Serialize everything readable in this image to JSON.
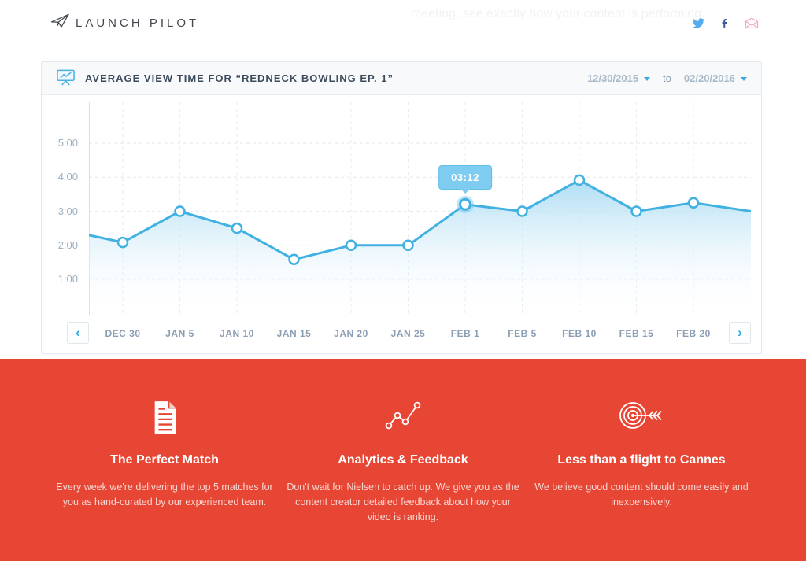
{
  "page": {
    "top_tagline": "meeting, see exactly how your content is performing."
  },
  "header": {
    "logo_text": "LAUNCH PILOT",
    "social_icons": [
      "twitter",
      "facebook",
      "email"
    ]
  },
  "chart_panel": {
    "title": "AVERAGE VIEW TIME FOR “REDNECK BOWLING EP. 1”",
    "date_from": "12/30/2015",
    "to_label": "to",
    "date_to": "02/20/2016",
    "prev_glyph": "‹",
    "next_glyph": "›"
  },
  "chart_data": {
    "type": "area",
    "title": "Average view time for “Redneck Bowling Ep. 1”",
    "categories": [
      "DEC 30",
      "JAN 5",
      "JAN 10",
      "JAN 15",
      "JAN 20",
      "JAN 25",
      "FEB 1",
      "FEB 5",
      "FEB 10",
      "FEB 15",
      "FEB 20"
    ],
    "values_display": [
      "2:05",
      "3:00",
      "2:30",
      "1:35",
      "2:00",
      "2:00",
      "3:12",
      "3:00",
      "3:55",
      "3:00",
      "3:15"
    ],
    "values_seconds": [
      125,
      180,
      150,
      95,
      120,
      120,
      192,
      180,
      235,
      180,
      195
    ],
    "edge_start_seconds": 138,
    "edge_end_seconds": 180,
    "y_ticks": [
      "5:00",
      "4:00",
      "3:00",
      "2:00",
      "1:00"
    ],
    "y_tick_values": [
      300,
      240,
      180,
      120,
      60
    ],
    "ylim_seconds": [
      60,
      300
    ],
    "grid": "dashed",
    "highlight_index": 6,
    "tooltip_label": "03:12",
    "line_color": "#41b1e1",
    "fill_top_color": "#a9dbf3"
  },
  "footer": {
    "background": "#e74634",
    "features": [
      {
        "icon": "document-icon",
        "title": "The Perfect Match",
        "body": "Every week we're delivering the top 5 matches for you as hand-curated by our experienced team."
      },
      {
        "icon": "analytics-icon",
        "title": "Analytics & Feedback",
        "body": "Don't wait for Nielsen to catch up. We give you as the content creator detailed feedback about how your video is ranking."
      },
      {
        "icon": "target-icon",
        "title": "Less than a flight to Cannes",
        "body": "We believe good content should come easily and inexpensively."
      }
    ]
  }
}
